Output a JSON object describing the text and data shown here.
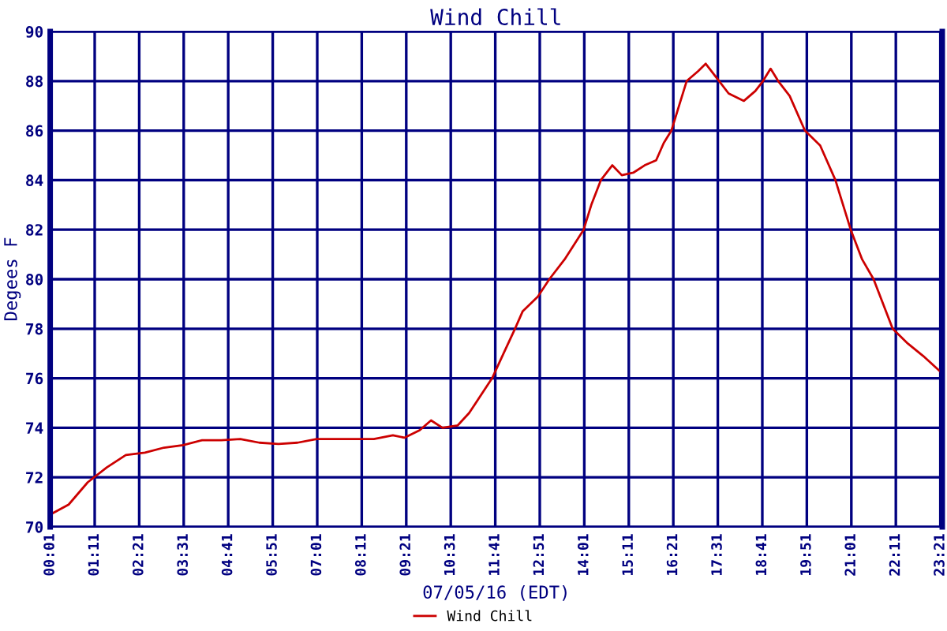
{
  "chart_data": {
    "type": "line",
    "title": "Wind Chill",
    "xlabel": "07/05/16 (EDT)",
    "ylabel": "Degees F",
    "x": [
      0.02,
      0.5,
      1.0,
      1.5,
      2.0,
      2.5,
      3.0,
      3.5,
      4.0,
      4.5,
      5.0,
      5.5,
      6.0,
      6.5,
      7.0,
      7.5,
      8.0,
      8.5,
      9.0,
      9.3,
      9.7,
      10.0,
      10.3,
      10.7,
      11.0,
      11.3,
      11.6,
      11.9,
      12.2,
      12.4,
      12.8,
      13.1,
      13.5,
      14.0,
      14.2,
      14.45,
      14.75,
      15.0,
      15.3,
      15.6,
      15.9,
      16.1,
      16.3,
      16.5,
      16.7,
      17.0,
      17.2,
      17.5,
      17.8,
      18.2,
      18.5,
      18.7,
      18.9,
      19.1,
      19.4,
      19.8,
      20.2,
      20.6,
      21.0,
      21.3,
      21.6,
      22.1,
      22.5,
      22.9,
      23.4
    ],
    "series": [
      {
        "name": "Wind Chill",
        "color": "#cc0000",
        "values": [
          70.5,
          70.9,
          71.8,
          72.4,
          72.9,
          73.0,
          73.2,
          73.3,
          73.5,
          73.5,
          73.55,
          73.4,
          73.35,
          73.4,
          73.55,
          73.55,
          73.55,
          73.55,
          73.7,
          73.6,
          73.9,
          74.3,
          74.0,
          74.1,
          74.6,
          75.3,
          76.0,
          77.0,
          78.0,
          78.7,
          79.3,
          80.0,
          80.8,
          82.0,
          83.0,
          84.0,
          84.6,
          84.2,
          84.3,
          84.6,
          84.8,
          85.5,
          86.0,
          87.0,
          88.0,
          88.4,
          88.7,
          88.1,
          87.5,
          87.2,
          87.6,
          88.0,
          88.5,
          88.0,
          87.4,
          86.0,
          85.4,
          84.0,
          82.0,
          80.8,
          80.0,
          78.0,
          77.4,
          76.9,
          76.2
        ]
      }
    ],
    "xlim": [
      0.0167,
      23.4
    ],
    "xticks": [
      {
        "value": 0.0167,
        "label": "00:01"
      },
      {
        "value": 1.1833,
        "label": "01:11"
      },
      {
        "value": 2.35,
        "label": "02:21"
      },
      {
        "value": 3.5167,
        "label": "03:31"
      },
      {
        "value": 4.6833,
        "label": "04:41"
      },
      {
        "value": 5.85,
        "label": "05:51"
      },
      {
        "value": 7.0167,
        "label": "07:01"
      },
      {
        "value": 8.1833,
        "label": "08:11"
      },
      {
        "value": 9.35,
        "label": "09:21"
      },
      {
        "value": 10.5167,
        "label": "10:31"
      },
      {
        "value": 11.6833,
        "label": "11:41"
      },
      {
        "value": 12.85,
        "label": "12:51"
      },
      {
        "value": 14.0167,
        "label": "14:01"
      },
      {
        "value": 15.1833,
        "label": "15:11"
      },
      {
        "value": 16.35,
        "label": "16:21"
      },
      {
        "value": 17.5167,
        "label": "17:31"
      },
      {
        "value": 18.6833,
        "label": "18:41"
      },
      {
        "value": 19.85,
        "label": "19:51"
      },
      {
        "value": 21.0167,
        "label": "21:01"
      },
      {
        "value": 22.1833,
        "label": "22:11"
      },
      {
        "value": 23.35,
        "label": "23:21"
      }
    ],
    "ylim": [
      70,
      90
    ],
    "yticks": [
      70,
      72,
      74,
      76,
      78,
      80,
      82,
      84,
      86,
      88,
      90
    ],
    "grid": true,
    "legend": "bottom",
    "marker": "none",
    "line_style": "solid"
  }
}
